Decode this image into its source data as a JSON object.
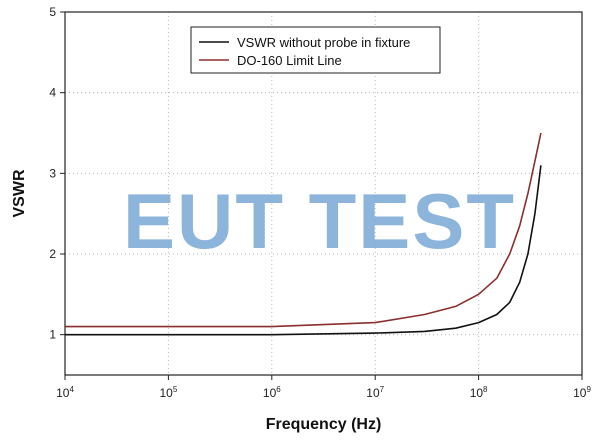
{
  "chart_data": {
    "type": "line",
    "title": "",
    "xlabel": "Frequency (Hz)",
    "ylabel": "VSWR",
    "xscale": "log",
    "xlim": [
      10000,
      1000000000
    ],
    "ylim": [
      0.5,
      5
    ],
    "grid": true,
    "legend_position": "top-right",
    "x_ticks": [
      {
        "value": 10000,
        "base": "10",
        "exp": "4"
      },
      {
        "value": 100000,
        "base": "10",
        "exp": "5"
      },
      {
        "value": 1000000,
        "base": "10",
        "exp": "6"
      },
      {
        "value": 10000000,
        "base": "10",
        "exp": "7"
      },
      {
        "value": 100000000,
        "base": "10",
        "exp": "8"
      },
      {
        "value": 1000000000,
        "base": "10",
        "exp": "9"
      }
    ],
    "y_ticks": [
      1,
      2,
      3,
      4,
      5
    ],
    "series": [
      {
        "name": "VSWR without probe in fixture",
        "color": "#111111",
        "x": [
          10000,
          100000,
          1000000,
          10000000,
          30000000,
          60000000,
          100000000,
          150000000,
          200000000,
          250000000,
          300000000,
          350000000,
          400000000
        ],
        "y": [
          1.0,
          1.0,
          1.0,
          1.02,
          1.04,
          1.08,
          1.15,
          1.25,
          1.4,
          1.65,
          2.0,
          2.5,
          3.1
        ]
      },
      {
        "name": "DO-160 Limit Line",
        "color": "#8b2e2e",
        "x": [
          10000,
          100000,
          1000000,
          10000000,
          30000000,
          60000000,
          100000000,
          150000000,
          200000000,
          250000000,
          300000000,
          350000000,
          400000000
        ],
        "y": [
          1.1,
          1.1,
          1.1,
          1.15,
          1.25,
          1.35,
          1.5,
          1.7,
          2.0,
          2.35,
          2.75,
          3.15,
          3.5
        ]
      }
    ]
  },
  "watermark": {
    "text": "EUT TEST"
  }
}
